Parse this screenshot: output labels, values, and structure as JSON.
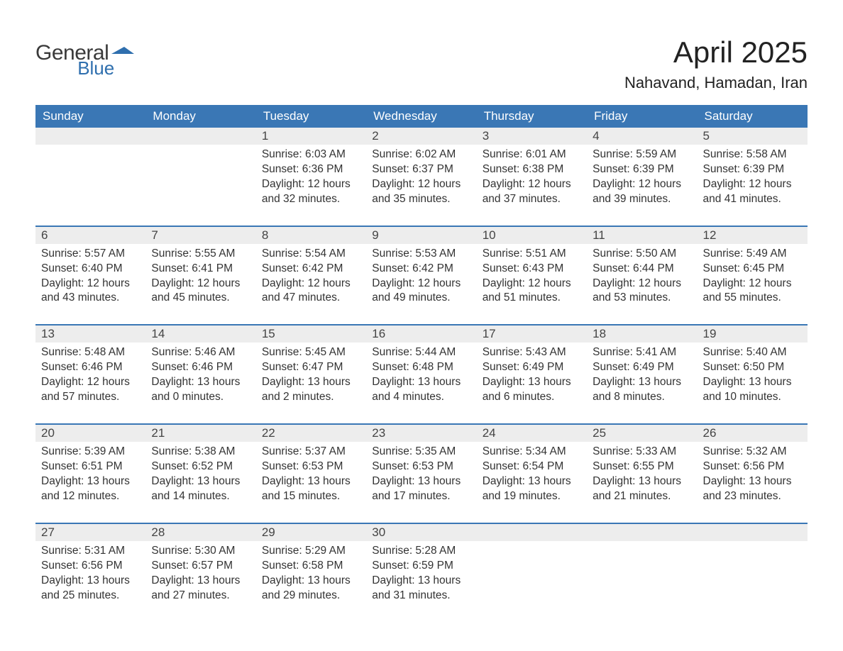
{
  "logo": {
    "word1": "General",
    "word2": "Blue",
    "icon_color": "#2f6fae",
    "text1_color": "#3a3a3a",
    "text2_color": "#2f6fae"
  },
  "title": "April 2025",
  "location": "Nahavand, Hamadan, Iran",
  "colors": {
    "header_bg": "#3a77b5",
    "header_text": "#ffffff",
    "daynum_bg": "#ededed",
    "daynum_border": "#3a77b5",
    "body_text": "#333333",
    "title_text": "#222222",
    "page_bg": "#ffffff"
  },
  "fonts": {
    "header_size_pt": 13,
    "body_size_pt": 12,
    "title_size_pt": 32,
    "location_size_pt": 17
  },
  "day_headers": [
    "Sunday",
    "Monday",
    "Tuesday",
    "Wednesday",
    "Thursday",
    "Friday",
    "Saturday"
  ],
  "weeks": [
    [
      null,
      null,
      {
        "n": "1",
        "sr": "Sunrise: 6:03 AM",
        "ss": "Sunset: 6:36 PM",
        "dl": "Daylight: 12 hours and 32 minutes."
      },
      {
        "n": "2",
        "sr": "Sunrise: 6:02 AM",
        "ss": "Sunset: 6:37 PM",
        "dl": "Daylight: 12 hours and 35 minutes."
      },
      {
        "n": "3",
        "sr": "Sunrise: 6:01 AM",
        "ss": "Sunset: 6:38 PM",
        "dl": "Daylight: 12 hours and 37 minutes."
      },
      {
        "n": "4",
        "sr": "Sunrise: 5:59 AM",
        "ss": "Sunset: 6:39 PM",
        "dl": "Daylight: 12 hours and 39 minutes."
      },
      {
        "n": "5",
        "sr": "Sunrise: 5:58 AM",
        "ss": "Sunset: 6:39 PM",
        "dl": "Daylight: 12 hours and 41 minutes."
      }
    ],
    [
      {
        "n": "6",
        "sr": "Sunrise: 5:57 AM",
        "ss": "Sunset: 6:40 PM",
        "dl": "Daylight: 12 hours and 43 minutes."
      },
      {
        "n": "7",
        "sr": "Sunrise: 5:55 AM",
        "ss": "Sunset: 6:41 PM",
        "dl": "Daylight: 12 hours and 45 minutes."
      },
      {
        "n": "8",
        "sr": "Sunrise: 5:54 AM",
        "ss": "Sunset: 6:42 PM",
        "dl": "Daylight: 12 hours and 47 minutes."
      },
      {
        "n": "9",
        "sr": "Sunrise: 5:53 AM",
        "ss": "Sunset: 6:42 PM",
        "dl": "Daylight: 12 hours and 49 minutes."
      },
      {
        "n": "10",
        "sr": "Sunrise: 5:51 AM",
        "ss": "Sunset: 6:43 PM",
        "dl": "Daylight: 12 hours and 51 minutes."
      },
      {
        "n": "11",
        "sr": "Sunrise: 5:50 AM",
        "ss": "Sunset: 6:44 PM",
        "dl": "Daylight: 12 hours and 53 minutes."
      },
      {
        "n": "12",
        "sr": "Sunrise: 5:49 AM",
        "ss": "Sunset: 6:45 PM",
        "dl": "Daylight: 12 hours and 55 minutes."
      }
    ],
    [
      {
        "n": "13",
        "sr": "Sunrise: 5:48 AM",
        "ss": "Sunset: 6:46 PM",
        "dl": "Daylight: 12 hours and 57 minutes."
      },
      {
        "n": "14",
        "sr": "Sunrise: 5:46 AM",
        "ss": "Sunset: 6:46 PM",
        "dl": "Daylight: 13 hours and 0 minutes."
      },
      {
        "n": "15",
        "sr": "Sunrise: 5:45 AM",
        "ss": "Sunset: 6:47 PM",
        "dl": "Daylight: 13 hours and 2 minutes."
      },
      {
        "n": "16",
        "sr": "Sunrise: 5:44 AM",
        "ss": "Sunset: 6:48 PM",
        "dl": "Daylight: 13 hours and 4 minutes."
      },
      {
        "n": "17",
        "sr": "Sunrise: 5:43 AM",
        "ss": "Sunset: 6:49 PM",
        "dl": "Daylight: 13 hours and 6 minutes."
      },
      {
        "n": "18",
        "sr": "Sunrise: 5:41 AM",
        "ss": "Sunset: 6:49 PM",
        "dl": "Daylight: 13 hours and 8 minutes."
      },
      {
        "n": "19",
        "sr": "Sunrise: 5:40 AM",
        "ss": "Sunset: 6:50 PM",
        "dl": "Daylight: 13 hours and 10 minutes."
      }
    ],
    [
      {
        "n": "20",
        "sr": "Sunrise: 5:39 AM",
        "ss": "Sunset: 6:51 PM",
        "dl": "Daylight: 13 hours and 12 minutes."
      },
      {
        "n": "21",
        "sr": "Sunrise: 5:38 AM",
        "ss": "Sunset: 6:52 PM",
        "dl": "Daylight: 13 hours and 14 minutes."
      },
      {
        "n": "22",
        "sr": "Sunrise: 5:37 AM",
        "ss": "Sunset: 6:53 PM",
        "dl": "Daylight: 13 hours and 15 minutes."
      },
      {
        "n": "23",
        "sr": "Sunrise: 5:35 AM",
        "ss": "Sunset: 6:53 PM",
        "dl": "Daylight: 13 hours and 17 minutes."
      },
      {
        "n": "24",
        "sr": "Sunrise: 5:34 AM",
        "ss": "Sunset: 6:54 PM",
        "dl": "Daylight: 13 hours and 19 minutes."
      },
      {
        "n": "25",
        "sr": "Sunrise: 5:33 AM",
        "ss": "Sunset: 6:55 PM",
        "dl": "Daylight: 13 hours and 21 minutes."
      },
      {
        "n": "26",
        "sr": "Sunrise: 5:32 AM",
        "ss": "Sunset: 6:56 PM",
        "dl": "Daylight: 13 hours and 23 minutes."
      }
    ],
    [
      {
        "n": "27",
        "sr": "Sunrise: 5:31 AM",
        "ss": "Sunset: 6:56 PM",
        "dl": "Daylight: 13 hours and 25 minutes."
      },
      {
        "n": "28",
        "sr": "Sunrise: 5:30 AM",
        "ss": "Sunset: 6:57 PM",
        "dl": "Daylight: 13 hours and 27 minutes."
      },
      {
        "n": "29",
        "sr": "Sunrise: 5:29 AM",
        "ss": "Sunset: 6:58 PM",
        "dl": "Daylight: 13 hours and 29 minutes."
      },
      {
        "n": "30",
        "sr": "Sunrise: 5:28 AM",
        "ss": "Sunset: 6:59 PM",
        "dl": "Daylight: 13 hours and 31 minutes."
      },
      null,
      null,
      null
    ]
  ]
}
